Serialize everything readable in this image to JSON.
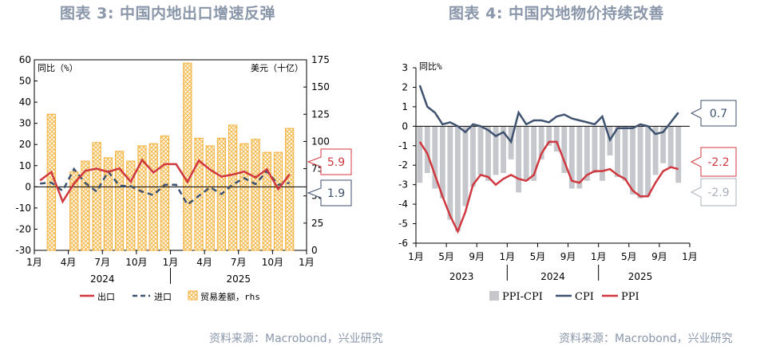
{
  "titles": {
    "left": "图表 3:  中国内地出口增速反弹",
    "right": "图表 4:  中国内地物价持续改善"
  },
  "sources": {
    "left": "资料来源：Macrobond，兴业研究",
    "right": "资料来源：Macrobond，兴业研究"
  },
  "colors": {
    "export": "#d0383f",
    "import": "#3f5270",
    "trade_bar": "#f4b03a",
    "ppi_cpi_bar": "#c5c7cc",
    "cpi": "#3f5270",
    "ppi": "#d0383f"
  },
  "chart_data": [
    {
      "id": "left",
      "type": "bar+line",
      "title": "中国内地出口增速反弹",
      "left_axis_label": "同比（%）",
      "right_axis_label": "美元（十亿）",
      "ylim_left": [
        -30,
        60
      ],
      "yticks_left": [
        60,
        50,
        40,
        30,
        20,
        10,
        0,
        -10,
        -20,
        -30
      ],
      "ylim_right": [
        0,
        175
      ],
      "yticks_right": [
        175,
        150,
        125,
        100,
        75,
        50,
        25,
        0
      ],
      "x_tick_labels": [
        "1月",
        "4月",
        "7月",
        "10月",
        "1月",
        "4月",
        "7月",
        "10月",
        "1月"
      ],
      "year_labels": [
        "2024",
        "2025"
      ],
      "legend": [
        "出口",
        "进口",
        "贸易差额，rhs"
      ],
      "end_labels": {
        "export": "5.9",
        "import": "1.9"
      },
      "months": [
        "2024-01",
        "2024-02",
        "2024-03",
        "2024-04",
        "2024-05",
        "2024-06",
        "2024-07",
        "2024-08",
        "2024-09",
        "2024-10",
        "2024-11",
        "2024-12",
        "2025-01",
        "2025-02",
        "2025-03",
        "2025-04",
        "2025-05",
        "2025-06",
        "2025-07",
        "2025-08",
        "2025-09",
        "2025-10",
        "2025-11"
      ],
      "series": [
        {
          "name": "出口",
          "values": [
            3,
            7,
            -7,
            1.5,
            7.6,
            8.6,
            7,
            8.7,
            2.4,
            12.7,
            6.7,
            10.7,
            10.7,
            2.3,
            12.4,
            8.1,
            4.8,
            5.8,
            7.2,
            4.4,
            8.3,
            -1.1,
            5.9
          ]
        },
        {
          "name": "进口",
          "values": [
            1.5,
            2,
            -1.9,
            8.4,
            1.8,
            -2.3,
            7.2,
            0.5,
            0.3,
            -2.3,
            -3.9,
            1,
            1,
            -8.4,
            -4.3,
            -0.2,
            -3.4,
            1.1,
            4.1,
            1.3,
            7.4,
            1,
            1.9
          ]
        }
      ],
      "trade_balance": [
        null,
        125,
        null,
        72,
        82,
        99,
        85,
        91,
        82,
        96,
        98,
        105,
        null,
        172,
        103,
        96,
        103,
        115,
        98,
        102,
        90,
        90,
        112
      ]
    },
    {
      "id": "right",
      "type": "bar+line",
      "title": "中国内地物价持续改善",
      "axis_label": "同比%",
      "ylim": [
        -6,
        3
      ],
      "yticks": [
        3,
        2,
        1,
        0,
        -1,
        -2,
        -3,
        -4,
        -5,
        -6
      ],
      "x_tick_labels": [
        "1月",
        "5月",
        "9月",
        "1月",
        "5月",
        "9月",
        "1月",
        "5月",
        "9月",
        "1月"
      ],
      "year_labels": [
        "2023",
        "2024",
        "2025"
      ],
      "legend": [
        "PPI-CPI",
        "CPI",
        "PPI"
      ],
      "end_labels": {
        "cpi": "0.7",
        "ppi": "-2.2",
        "ppi_cpi": "-2.9"
      },
      "months": [
        "2023-01",
        "2023-02",
        "2023-03",
        "2023-04",
        "2023-05",
        "2023-06",
        "2023-07",
        "2023-08",
        "2023-09",
        "2023-10",
        "2023-11",
        "2023-12",
        "2024-01",
        "2024-02",
        "2024-03",
        "2024-04",
        "2024-05",
        "2024-06",
        "2024-07",
        "2024-08",
        "2024-09",
        "2024-10",
        "2024-11",
        "2024-12",
        "2025-01",
        "2025-02",
        "2025-03",
        "2025-04",
        "2025-05",
        "2025-06",
        "2025-07",
        "2025-08",
        "2025-09",
        "2025-10",
        "2025-11"
      ],
      "series": [
        {
          "name": "PPI-CPI",
          "values": [
            -2.9,
            -2.4,
            -3.2,
            -3.7,
            -4.8,
            -5.4,
            -4.1,
            -3.1,
            -2.5,
            -2.8,
            -2.5,
            -2.4,
            -1.7,
            -3.4,
            -2.8,
            -2.8,
            -1.7,
            -1.0,
            -1.3,
            -2.4,
            -3.2,
            -3.2,
            -2.8,
            -2.4,
            -2.8,
            -1.5,
            -2.6,
            -2.8,
            -3.5,
            -3.7,
            -3.6,
            -2.5,
            -1.9,
            -2.1,
            -2.9
          ]
        },
        {
          "name": "CPI",
          "values": [
            2.1,
            1.0,
            0.7,
            0.1,
            0.2,
            0.0,
            -0.3,
            0.1,
            0.0,
            -0.2,
            -0.5,
            -0.3,
            -0.8,
            0.7,
            0.1,
            0.3,
            0.3,
            0.2,
            0.5,
            0.6,
            0.4,
            0.3,
            0.2,
            0.1,
            0.5,
            -0.7,
            -0.1,
            -0.1,
            -0.1,
            0.1,
            0.0,
            -0.4,
            -0.3,
            0.2,
            0.7
          ]
        },
        {
          "name": "PPI",
          "values": [
            -0.8,
            -1.4,
            -2.5,
            -3.6,
            -4.6,
            -5.4,
            -4.4,
            -3.0,
            -2.5,
            -2.6,
            -3.0,
            -2.7,
            -2.5,
            -2.7,
            -2.8,
            -2.5,
            -1.4,
            -0.8,
            -0.8,
            -1.8,
            -2.8,
            -2.9,
            -2.5,
            -2.3,
            -2.3,
            -2.2,
            -2.5,
            -2.7,
            -3.3,
            -3.6,
            -3.6,
            -2.9,
            -2.3,
            -2.1,
            -2.2
          ]
        }
      ]
    }
  ]
}
